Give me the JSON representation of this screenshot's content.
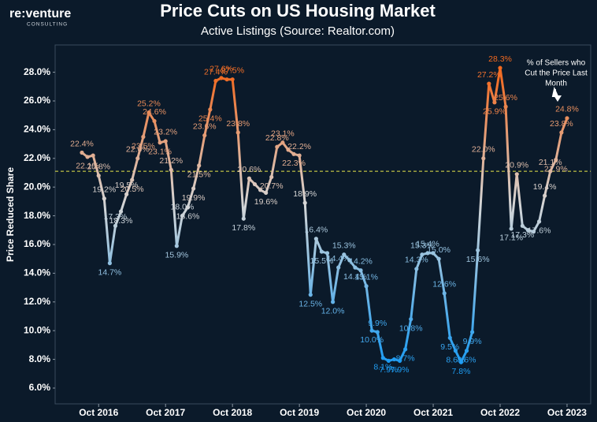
{
  "chart_data": {
    "type": "line",
    "logo": {
      "name": "re:venture",
      "tagline": "CONSULTING"
    },
    "title": "Price Cuts on US Housing Market",
    "subtitle": "Active Listings (Source: Realtor.com)",
    "y_label": "Price Reduced Share",
    "annotation": [
      "% of Sellers who",
      "Cut the Price Last",
      "Month"
    ],
    "x": [
      "Jul 2016",
      "Aug 2016",
      "Sep 2016",
      "Oct 2016",
      "Nov 2016",
      "Dec 2016",
      "Jan 2017",
      "Feb 2017",
      "Mar 2017",
      "Apr 2017",
      "May 2017",
      "Jun 2017",
      "Jul 2017",
      "Aug 2017",
      "Sep 2017",
      "Oct 2017",
      "Nov 2017",
      "Dec 2017",
      "Jan 2018",
      "Feb 2018",
      "Mar 2018",
      "Apr 2018",
      "May 2018",
      "Jun 2018",
      "Jul 2018",
      "Aug 2018",
      "Sep 2018",
      "Oct 2018",
      "Nov 2018",
      "Dec 2018",
      "Jan 2019",
      "Feb 2019",
      "Mar 2019",
      "Apr 2019",
      "May 2019",
      "Jun 2019",
      "Jul 2019",
      "Aug 2019",
      "Sep 2019",
      "Oct 2019",
      "Nov 2019",
      "Dec 2019",
      "Jan 2020",
      "Feb 2020",
      "Mar 2020",
      "Apr 2020",
      "May 2020",
      "Jun 2020",
      "Jul 2020",
      "Aug 2020",
      "Sep 2020",
      "Oct 2020",
      "Nov 2020",
      "Dec 2020",
      "Jan 2021",
      "Feb 2021",
      "Mar 2021",
      "Apr 2021",
      "May 2021",
      "Jun 2021",
      "Jul 2021",
      "Aug 2021",
      "Sep 2021",
      "Oct 2021",
      "Nov 2021",
      "Dec 2021",
      "Jan 2022",
      "Feb 2022",
      "Mar 2022",
      "Apr 2022",
      "May 2022",
      "Jun 2022",
      "Jul 2022",
      "Aug 2022",
      "Sep 2022",
      "Oct 2022",
      "Nov 2022",
      "Dec 2022",
      "Jan 2023",
      "Feb 2023",
      "Mar 2023",
      "Apr 2023",
      "May 2023",
      "Jun 2023",
      "Jul 2023",
      "Aug 2023",
      "Sep 2023",
      "Oct 2023"
    ],
    "xticks": [
      "Oct 2016",
      "Oct 2017",
      "Oct 2018",
      "Oct 2019",
      "Oct 2020",
      "Oct 2021",
      "Oct 2022",
      "Oct 2023"
    ],
    "series": [
      {
        "values": [
          22.4,
          22.1,
          22.2,
          20.8,
          19.2,
          14.7,
          17.3,
          18.3,
          19.5,
          20.5,
          22.0,
          23.5,
          25.2,
          24.6,
          23.1,
          23.2,
          21.2,
          15.9,
          18.0,
          18.6,
          19.9,
          21.5,
          23.6,
          25.4,
          27.4,
          27.6,
          27.5,
          27.5,
          23.8,
          17.8,
          20.6,
          20.2,
          19.8,
          19.6,
          20.7,
          22.8,
          23.1,
          22.6,
          22.3,
          22.2,
          18.9,
          12.5,
          16.4,
          15.5,
          15.4,
          12.0,
          14.4,
          15.3,
          14.9,
          14.4,
          14.2,
          13.1,
          10.0,
          9.9,
          8.1,
          7.9,
          8.0,
          7.9,
          8.7,
          10.8,
          14.3,
          15.3,
          15.4,
          15.4,
          15.0,
          12.6,
          9.5,
          8.6,
          7.8,
          8.6,
          9.9,
          15.6,
          22.0,
          27.2,
          25.9,
          28.3,
          25.6,
          17.1,
          20.9,
          17.3,
          17.0,
          16.9,
          17.6,
          19.4,
          21.1,
          21.9,
          23.8,
          24.8
        ],
        "value_labels": [
          "22.4%",
          "22.1%",
          null,
          "20.8%",
          "19.2%",
          "14.7%",
          "17.3%",
          "18.3%",
          "19.5%",
          "20.5%",
          "22.0%",
          "23.5%",
          "25.2%",
          "24.6%",
          "23.1%",
          "23.2%",
          "21.2%",
          "15.9%",
          "18.0%",
          "18.6%",
          "19.9%",
          "21.5%",
          "23.6%",
          "25.4%",
          "27.4%",
          "27.6%",
          null,
          "27.5%",
          "23.8%",
          "17.8%",
          "20.6%",
          null,
          null,
          "19.6%",
          "20.7%",
          "22.8%",
          "23.1%",
          null,
          "22.3%",
          "22.2%",
          "18.9%",
          "12.5%",
          "16.4%",
          "15.5%",
          null,
          "12.0%",
          "14.4%",
          "15.3%",
          null,
          "14.4%",
          "14.2%",
          "13.1%",
          "10.0%",
          "9.9%",
          "8.1%",
          "7.9%",
          null,
          "7.9%",
          "8.7%",
          "10.8%",
          "14.3%",
          "15.3%",
          "15.4%",
          null,
          "15.0%",
          "12.6%",
          "9.5%",
          "8.6%",
          "7.8%",
          "8.6%",
          "9.9%",
          "15.6%",
          "22.0%",
          "27.2%",
          "25.9%",
          "28.3%",
          "25.6%",
          "17.1%",
          "20.9%",
          "17.3%",
          null,
          null,
          "17.6%",
          "19.4%",
          "21.1%",
          "21.9%",
          "23.8%",
          "24.8%"
        ]
      }
    ],
    "colors": [
      "#1e9cf2",
      "#d6d6d6",
      "#f2691f"
    ],
    "reference_line": 21.1,
    "reference_color": "#e8e84a",
    "ylim": [
      4.9,
      29.9
    ],
    "yticks": [
      {
        "value": 6,
        "label": "6.0%"
      },
      {
        "value": 8,
        "label": "8.0%"
      },
      {
        "value": 10,
        "label": "10.0%"
      },
      {
        "value": 12,
        "label": "12.0%"
      },
      {
        "value": 14,
        "label": "14.0%"
      },
      {
        "value": 16,
        "label": "16.0%"
      },
      {
        "value": 18,
        "label": "18.0%"
      },
      {
        "value": 20,
        "label": "20.0%"
      },
      {
        "value": 22,
        "label": "22.0%"
      },
      {
        "value": 24,
        "label": "24.0%"
      },
      {
        "value": 26,
        "label": "26.0%"
      },
      {
        "value": 28,
        "label": "28.0%"
      }
    ]
  }
}
